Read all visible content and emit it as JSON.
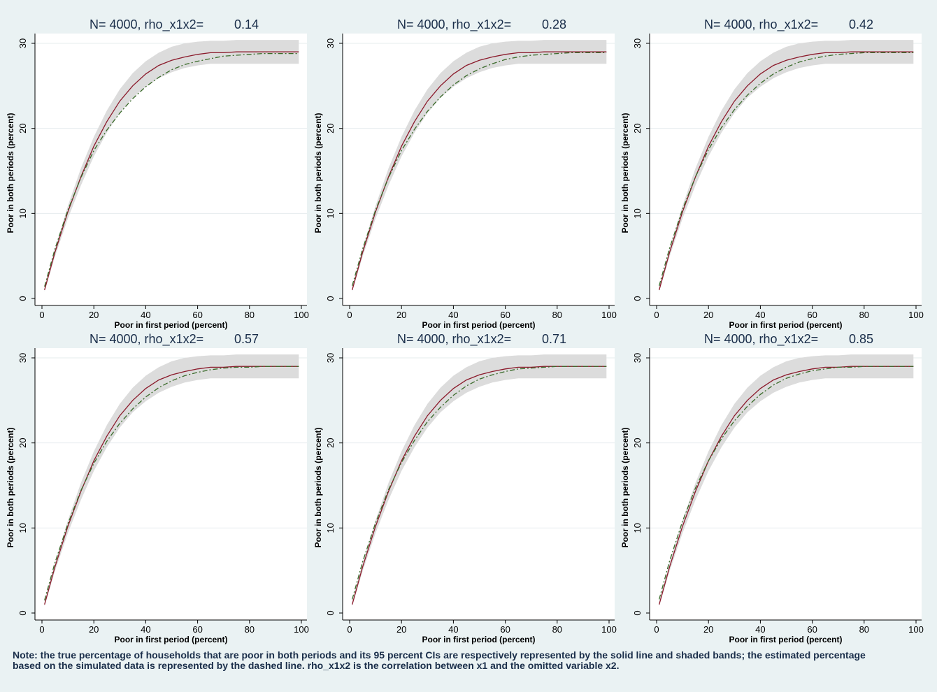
{
  "note": {
    "line1": "Note: the true percentage of households that are poor in both periods and its 95 percent CIs are respectively represented by the solid line and shaded bands; the estimated percentage",
    "line2": "based on the simulated data is represented by the dashed line. rho_x1x2 is the correlation between x1 and the omitted variable x2."
  },
  "colors": {
    "background": "#eaf2f3",
    "plot_area": "#ffffff",
    "band": "#dcdcdc",
    "true_line": "#8b1a2b",
    "estimate_line": "#3a6b2a",
    "title_text": "#1a2e4a"
  },
  "chart_data": [
    {
      "type": "line",
      "title": "N= 4000, rho_x1x2=",
      "title_value": "0.14",
      "xlabel": "Poor in first period (percent)",
      "ylabel": "Poor in both periods (percent)",
      "xlim": [
        0,
        100
      ],
      "ylim": [
        0,
        30
      ],
      "xticks": [
        "0",
        "20",
        "40",
        "60",
        "80",
        "100"
      ],
      "yticks": [
        "0",
        "10",
        "20",
        "30"
      ],
      "grid": true,
      "x": [
        1,
        5,
        10,
        15,
        20,
        25,
        30,
        35,
        40,
        45,
        50,
        55,
        60,
        65,
        70,
        75,
        80,
        85,
        90,
        95,
        99
      ],
      "series": [
        {
          "style": "band",
          "lower": [
            0.8,
            4.9,
            9.4,
            13.3,
            16.7,
            19.5,
            21.8,
            23.6,
            24.9,
            25.9,
            26.6,
            27.1,
            27.4,
            27.6,
            27.6,
            27.6,
            27.6,
            27.6,
            27.6,
            27.6,
            27.6
          ],
          "upper": [
            1.3,
            5.9,
            10.9,
            15.3,
            19.0,
            22.1,
            24.6,
            26.5,
            27.9,
            28.9,
            29.6,
            30.0,
            30.2,
            30.3,
            30.3,
            30.4,
            30.4,
            30.4,
            30.4,
            30.4,
            30.4
          ]
        },
        {
          "style": "solid",
          "values": [
            1.0,
            5.4,
            10.2,
            14.3,
            17.9,
            20.8,
            23.2,
            25.0,
            26.4,
            27.4,
            28.0,
            28.4,
            28.7,
            28.9,
            28.9,
            29.0,
            29.0,
            29.0,
            29.0,
            29.0,
            29.0
          ]
        },
        {
          "style": "dashed",
          "values": [
            1.4,
            5.8,
            10.4,
            14.2,
            17.4,
            19.8,
            21.8,
            23.5,
            24.9,
            26.0,
            26.9,
            27.5,
            27.9,
            28.2,
            28.5,
            28.6,
            28.7,
            28.8,
            28.8,
            28.8,
            28.8
          ]
        }
      ]
    },
    {
      "type": "line",
      "title": "N= 4000, rho_x1x2=",
      "title_value": "0.28",
      "xlabel": "Poor in first period (percent)",
      "ylabel": "Poor in both periods (percent)",
      "xlim": [
        0,
        100
      ],
      "ylim": [
        0,
        30
      ],
      "xticks": [
        "0",
        "20",
        "40",
        "60",
        "80",
        "100"
      ],
      "yticks": [
        "0",
        "10",
        "20",
        "30"
      ],
      "grid": true,
      "x": [
        1,
        5,
        10,
        15,
        20,
        25,
        30,
        35,
        40,
        45,
        50,
        55,
        60,
        65,
        70,
        75,
        80,
        85,
        90,
        95,
        99
      ],
      "series": [
        {
          "style": "band",
          "lower": [
            0.8,
            4.9,
            9.4,
            13.3,
            16.7,
            19.5,
            21.8,
            23.6,
            24.9,
            25.9,
            26.6,
            27.1,
            27.4,
            27.6,
            27.6,
            27.6,
            27.6,
            27.6,
            27.6,
            27.6,
            27.6
          ],
          "upper": [
            1.3,
            5.9,
            10.9,
            15.3,
            19.0,
            22.1,
            24.6,
            26.5,
            27.9,
            28.9,
            29.6,
            30.0,
            30.2,
            30.3,
            30.3,
            30.4,
            30.4,
            30.4,
            30.4,
            30.4,
            30.4
          ]
        },
        {
          "style": "solid",
          "values": [
            1.0,
            5.4,
            10.2,
            14.3,
            17.9,
            20.8,
            23.2,
            25.0,
            26.4,
            27.4,
            28.0,
            28.4,
            28.7,
            28.9,
            28.9,
            29.0,
            29.0,
            29.0,
            29.0,
            29.0,
            29.0
          ]
        },
        {
          "style": "dashed",
          "values": [
            1.5,
            5.8,
            10.4,
            14.2,
            17.4,
            19.9,
            22.0,
            23.7,
            25.1,
            26.2,
            27.0,
            27.6,
            28.1,
            28.4,
            28.6,
            28.7,
            28.8,
            28.9,
            28.9,
            28.9,
            28.9
          ]
        }
      ]
    },
    {
      "type": "line",
      "title": "N= 4000, rho_x1x2=",
      "title_value": "0.42",
      "xlabel": "Poor in first period (percent)",
      "ylabel": "Poor in both periods (percent)",
      "xlim": [
        0,
        100
      ],
      "ylim": [
        0,
        30
      ],
      "xticks": [
        "0",
        "20",
        "40",
        "60",
        "80",
        "100"
      ],
      "yticks": [
        "0",
        "10",
        "20",
        "30"
      ],
      "grid": true,
      "x": [
        1,
        5,
        10,
        15,
        20,
        25,
        30,
        35,
        40,
        45,
        50,
        55,
        60,
        65,
        70,
        75,
        80,
        85,
        90,
        95,
        99
      ],
      "series": [
        {
          "style": "band",
          "lower": [
            0.8,
            4.9,
            9.4,
            13.3,
            16.7,
            19.5,
            21.8,
            23.6,
            24.9,
            25.9,
            26.6,
            27.1,
            27.4,
            27.6,
            27.6,
            27.6,
            27.6,
            27.6,
            27.6,
            27.6,
            27.6
          ],
          "upper": [
            1.3,
            5.9,
            10.9,
            15.3,
            19.0,
            22.1,
            24.6,
            26.5,
            27.9,
            28.9,
            29.6,
            30.0,
            30.2,
            30.3,
            30.3,
            30.4,
            30.4,
            30.4,
            30.4,
            30.4,
            30.4
          ]
        },
        {
          "style": "solid",
          "values": [
            1.0,
            5.4,
            10.2,
            14.3,
            17.9,
            20.8,
            23.2,
            25.0,
            26.4,
            27.4,
            28.0,
            28.4,
            28.7,
            28.9,
            28.9,
            29.0,
            29.0,
            29.0,
            29.0,
            29.0,
            29.0
          ]
        },
        {
          "style": "dashed",
          "values": [
            1.5,
            5.9,
            10.5,
            14.3,
            17.5,
            20.1,
            22.2,
            23.9,
            25.3,
            26.4,
            27.2,
            27.8,
            28.2,
            28.5,
            28.7,
            28.8,
            28.9,
            28.9,
            28.9,
            28.9,
            28.9
          ]
        }
      ]
    },
    {
      "type": "line",
      "title": "N= 4000, rho_x1x2=",
      "title_value": "0.57",
      "xlabel": "Poor in first period (percent)",
      "ylabel": "Poor in both periods (percent)",
      "xlim": [
        0,
        100
      ],
      "ylim": [
        0,
        30
      ],
      "xticks": [
        "0",
        "20",
        "40",
        "60",
        "80",
        "100"
      ],
      "yticks": [
        "0",
        "10",
        "20",
        "30"
      ],
      "grid": true,
      "x": [
        1,
        5,
        10,
        15,
        20,
        25,
        30,
        35,
        40,
        45,
        50,
        55,
        60,
        65,
        70,
        75,
        80,
        85,
        90,
        95,
        99
      ],
      "series": [
        {
          "style": "band",
          "lower": [
            0.8,
            4.9,
            9.4,
            13.3,
            16.7,
            19.5,
            21.8,
            23.6,
            24.9,
            25.9,
            26.6,
            27.1,
            27.4,
            27.6,
            27.6,
            27.6,
            27.6,
            27.6,
            27.6,
            27.6,
            27.6
          ],
          "upper": [
            1.3,
            5.9,
            10.9,
            15.3,
            19.0,
            22.1,
            24.6,
            26.5,
            27.9,
            28.9,
            29.6,
            30.0,
            30.2,
            30.3,
            30.3,
            30.4,
            30.4,
            30.4,
            30.4,
            30.4,
            30.4
          ]
        },
        {
          "style": "solid",
          "values": [
            1.0,
            5.4,
            10.2,
            14.3,
            17.9,
            20.8,
            23.2,
            25.0,
            26.4,
            27.4,
            28.0,
            28.4,
            28.7,
            28.9,
            28.9,
            29.0,
            29.0,
            29.0,
            29.0,
            29.0,
            29.0
          ]
        },
        {
          "style": "dashed",
          "values": [
            1.5,
            5.9,
            10.5,
            14.4,
            17.6,
            20.2,
            22.3,
            24.0,
            25.4,
            26.5,
            27.3,
            27.9,
            28.3,
            28.6,
            28.8,
            28.9,
            28.9,
            29.0,
            29.0,
            29.0,
            29.0
          ]
        }
      ]
    },
    {
      "type": "line",
      "title": "N= 4000, rho_x1x2=",
      "title_value": "0.71",
      "xlabel": "Poor in first period (percent)",
      "ylabel": "Poor in both periods (percent)",
      "xlim": [
        0,
        100
      ],
      "ylim": [
        0,
        30
      ],
      "xticks": [
        "0",
        "20",
        "40",
        "60",
        "80",
        "100"
      ],
      "yticks": [
        "0",
        "10",
        "20",
        "30"
      ],
      "grid": true,
      "x": [
        1,
        5,
        10,
        15,
        20,
        25,
        30,
        35,
        40,
        45,
        50,
        55,
        60,
        65,
        70,
        75,
        80,
        85,
        90,
        95,
        99
      ],
      "series": [
        {
          "style": "band",
          "lower": [
            0.8,
            4.9,
            9.4,
            13.3,
            16.7,
            19.5,
            21.8,
            23.6,
            24.9,
            25.9,
            26.6,
            27.1,
            27.4,
            27.6,
            27.6,
            27.6,
            27.6,
            27.6,
            27.6,
            27.6,
            27.6
          ],
          "upper": [
            1.3,
            5.9,
            10.9,
            15.3,
            19.0,
            22.1,
            24.6,
            26.5,
            27.9,
            28.9,
            29.6,
            30.0,
            30.2,
            30.3,
            30.3,
            30.4,
            30.4,
            30.4,
            30.4,
            30.4,
            30.4
          ]
        },
        {
          "style": "solid",
          "values": [
            1.0,
            5.4,
            10.2,
            14.3,
            17.9,
            20.8,
            23.2,
            25.0,
            26.4,
            27.4,
            28.0,
            28.4,
            28.7,
            28.9,
            28.9,
            29.0,
            29.0,
            29.0,
            29.0,
            29.0,
            29.0
          ]
        },
        {
          "style": "dashed",
          "values": [
            1.6,
            6.0,
            10.6,
            14.5,
            17.7,
            20.3,
            22.5,
            24.2,
            25.6,
            26.7,
            27.5,
            28.0,
            28.4,
            28.7,
            28.8,
            28.9,
            29.0,
            29.0,
            29.0,
            29.0,
            29.0
          ]
        }
      ]
    },
    {
      "type": "line",
      "title": "N= 4000, rho_x1x2=",
      "title_value": "0.85",
      "xlabel": "Poor in first period (percent)",
      "ylabel": "Poor in both periods (percent)",
      "xlim": [
        0,
        100
      ],
      "ylim": [
        0,
        30
      ],
      "xticks": [
        "0",
        "20",
        "40",
        "60",
        "80",
        "100"
      ],
      "yticks": [
        "0",
        "10",
        "20",
        "30"
      ],
      "grid": true,
      "x": [
        1,
        5,
        10,
        15,
        20,
        25,
        30,
        35,
        40,
        45,
        50,
        55,
        60,
        65,
        70,
        75,
        80,
        85,
        90,
        95,
        99
      ],
      "series": [
        {
          "style": "band",
          "lower": [
            0.8,
            4.9,
            9.4,
            13.3,
            16.7,
            19.5,
            21.8,
            23.6,
            24.9,
            25.9,
            26.6,
            27.1,
            27.4,
            27.6,
            27.6,
            27.6,
            27.6,
            27.6,
            27.6,
            27.6,
            27.6
          ],
          "upper": [
            1.3,
            5.9,
            10.9,
            15.3,
            19.0,
            22.1,
            24.6,
            26.5,
            27.9,
            28.9,
            29.6,
            30.0,
            30.2,
            30.3,
            30.3,
            30.4,
            30.4,
            30.4,
            30.4,
            30.4,
            30.4
          ]
        },
        {
          "style": "solid",
          "values": [
            1.0,
            5.4,
            10.2,
            14.3,
            17.9,
            20.8,
            23.2,
            25.0,
            26.4,
            27.4,
            28.0,
            28.4,
            28.7,
            28.9,
            28.9,
            29.0,
            29.0,
            29.0,
            29.0,
            29.0,
            29.0
          ]
        },
        {
          "style": "dashed",
          "values": [
            1.6,
            6.1,
            10.8,
            14.7,
            17.9,
            20.5,
            22.6,
            24.3,
            25.7,
            26.8,
            27.6,
            28.1,
            28.5,
            28.7,
            28.9,
            28.9,
            29.0,
            29.0,
            29.0,
            29.0,
            29.0
          ]
        }
      ]
    }
  ]
}
